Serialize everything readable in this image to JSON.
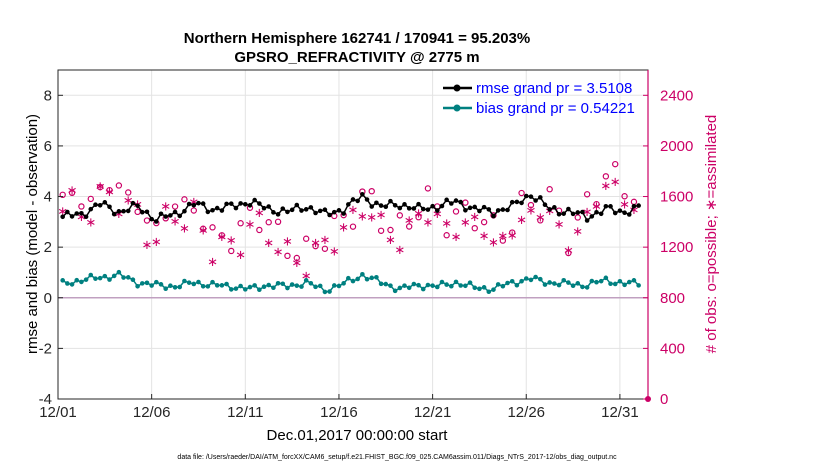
{
  "chart_data": {
    "type": "line",
    "title": "Northern Hemisphere 162741 / 170941 = 95.203%",
    "subtitle": "GPSRO_REFRACTIVITY @ 2775 m",
    "xlabel": "Dec.01,2017 00:00:00 start",
    "ylabel": "rmse and bias (model - observation)",
    "y2label": "# of obs: o=possible; ∗=assimilated",
    "footnote": "data file: /Users/raeder/DAI/ATM_forcXX/CAM6_setup/f.e21.FHIST_BGC.f09_025.CAM6assim.011/Diags_NTrS_2017-12/obs_diag_output.nc",
    "xlim": [
      0,
      31.5
    ],
    "ylim": [
      -4,
      9
    ],
    "y2lim": [
      0,
      2600
    ],
    "xticks": [
      0,
      5,
      10,
      15,
      20,
      25,
      30
    ],
    "xtick_labels": [
      "12/01",
      "12/06",
      "12/11",
      "12/16",
      "12/21",
      "12/26",
      "12/31"
    ],
    "yticks": [
      -4,
      -2,
      0,
      2,
      4,
      6,
      8
    ],
    "ytick_labels": [
      "-4",
      "-2",
      "0",
      "2",
      "4",
      "6",
      "8"
    ],
    "y2ticks": [
      0,
      400,
      800,
      1200,
      1600,
      2000,
      2400
    ],
    "y2tick_labels": [
      "0",
      "400",
      "800",
      "1200",
      "1600",
      "2000",
      "2400"
    ],
    "grid": true,
    "legend_position": "top-right",
    "colors": {
      "rmse": "#000000",
      "bias": "#008080",
      "obs": "#cc0066",
      "legend_text": "#0000ff",
      "zero_line": "#c0a0c0"
    },
    "series": [
      {
        "name": "rmse grand pr = 3.5108",
        "legend": "rmse grand pr = 3.5108",
        "axis": "left",
        "base": [
          3.2,
          3.3,
          3.7,
          3.4,
          3.6,
          3.1,
          3.3,
          3.7,
          3.5,
          3.6,
          3.8,
          3.5,
          3.4,
          3.6,
          3.3,
          3.5,
          4.0,
          3.6,
          3.7,
          3.5,
          3.6,
          3.8,
          3.5,
          3.4,
          3.6,
          4.1,
          3.5,
          3.4,
          3.2,
          3.5,
          3.4,
          3.6
        ],
        "amp": 0.2
      },
      {
        "name": "bias grand pr = 0.54221",
        "legend": "bias grand pr = 0.54221",
        "axis": "left",
        "base": [
          0.55,
          0.7,
          0.8,
          0.9,
          0.6,
          0.5,
          0.45,
          0.6,
          0.5,
          0.45,
          0.35,
          0.5,
          0.45,
          0.6,
          0.3,
          0.55,
          0.9,
          0.6,
          0.35,
          0.5,
          0.45,
          0.6,
          0.4,
          0.35,
          0.6,
          0.75,
          0.6,
          0.55,
          0.5,
          0.7,
          0.55,
          0.6
        ],
        "amp": 0.15
      },
      {
        "name": "possible",
        "axis": "right",
        "marker": "o",
        "base": [
          1620,
          1550,
          1640,
          1700,
          1500,
          1350,
          1550,
          1500,
          1300,
          1250,
          1450,
          1400,
          1200,
          1150,
          1300,
          1400,
          1600,
          1450,
          1300,
          1550,
          1500,
          1400,
          1500,
          1300,
          1400,
          1550,
          1550,
          1300,
          1500,
          1800,
          1650,
          1650
        ],
        "amp": 160
      },
      {
        "name": "assimilated",
        "axis": "right",
        "marker": "*",
        "base": [
          1550,
          1480,
          1570,
          1620,
          1430,
          1280,
          1480,
          1430,
          1230,
          1180,
          1380,
          1330,
          1130,
          1080,
          1230,
          1330,
          1530,
          1380,
          1230,
          1480,
          1430,
          1330,
          1430,
          1230,
          1330,
          1480,
          1480,
          1230,
          1430,
          1720,
          1570,
          1570
        ],
        "amp": 150
      }
    ]
  }
}
